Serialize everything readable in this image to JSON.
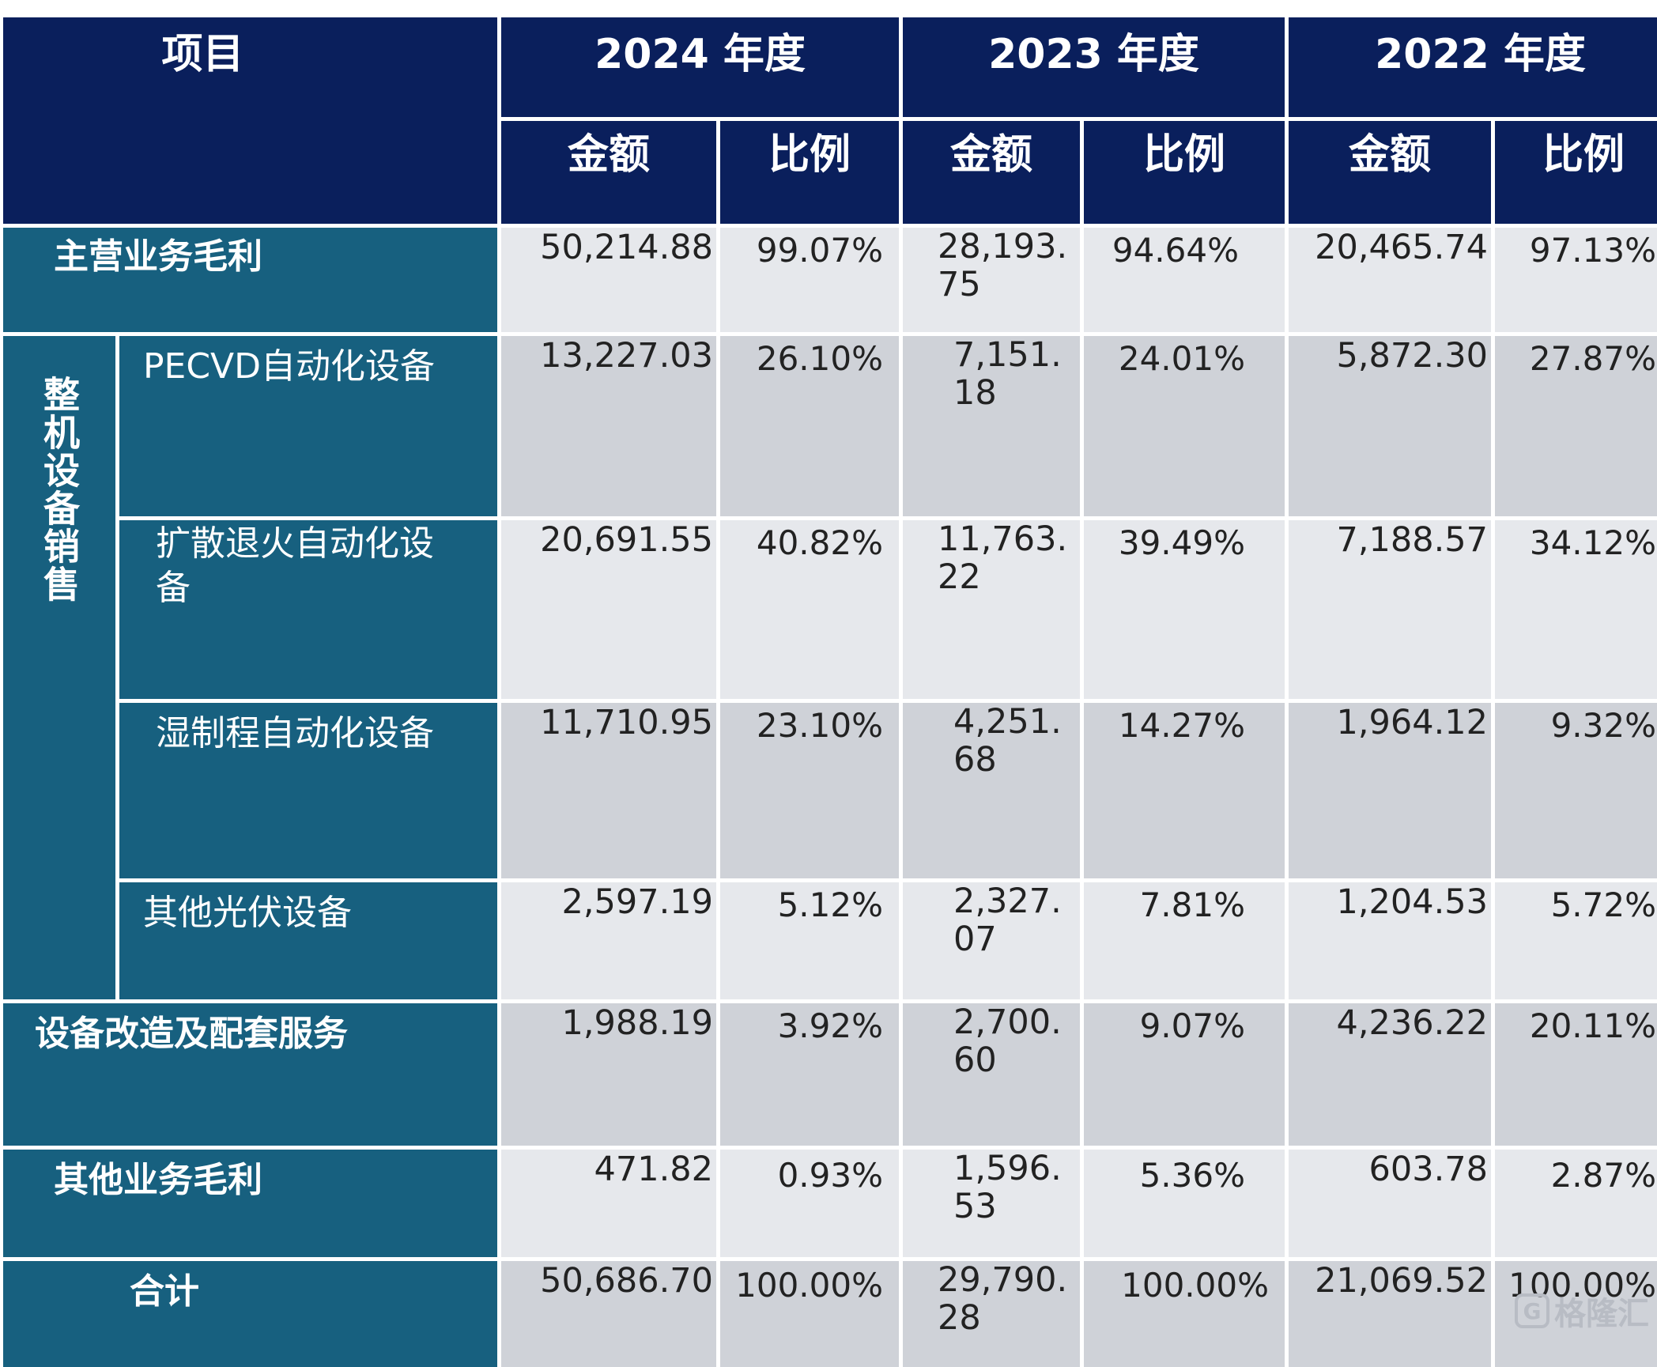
{
  "header": {
    "item": "项目",
    "years": [
      "2024 年度",
      "2023 年度",
      "2022 年度"
    ],
    "amount": "金额",
    "ratio": "比例"
  },
  "group_label": "整机设备销售",
  "rows": [
    {
      "label": "主营业务毛利",
      "v24": "50,214.88",
      "p24": "99.07%",
      "v23": "28,193.75",
      "p23": "94.64%",
      "v22": "20,465.74",
      "p22": "97.13%"
    },
    {
      "label": "PECVD自动化设备",
      "v24": "13,227.03",
      "p24": "26.10%",
      "v23": "7,151.18",
      "p23": "24.01%",
      "v22": "5,872.30",
      "p22": "27.87%"
    },
    {
      "label": "扩散退火自动化设备",
      "v24": "20,691.55",
      "p24": "40.82%",
      "v23": "11,763.22",
      "p23": "39.49%",
      "v22": "7,188.57",
      "p22": "34.12%"
    },
    {
      "label": "湿制程自动化设备",
      "v24": "11,710.95",
      "p24": "23.10%",
      "v23": "4,251.68",
      "p23": "14.27%",
      "v22": "1,964.12",
      "p22": "9.32%"
    },
    {
      "label": "其他光伏设备",
      "v24": "2,597.19",
      "p24": "5.12%",
      "v23": "2,327.07",
      "p23": "7.81%",
      "v22": "1,204.53",
      "p22": "5.72%"
    },
    {
      "label": "设备改造及配套服务",
      "v24": "1,988.19",
      "p24": "3.92%",
      "v23": "2,700.60",
      "p23": "9.07%",
      "v22": "4,236.22",
      "p22": "20.11%"
    },
    {
      "label": "其他业务毛利",
      "v24": "471.82",
      "p24": "0.93%",
      "v23": "1,596.53",
      "p23": "5.36%",
      "v22": "603.78",
      "p22": "2.87%"
    },
    {
      "label": "合计",
      "v24": "50,686.70",
      "p24": "100.00%",
      "v23": "29,790.28",
      "p23": "100.00%",
      "v22": "21,069.52",
      "p22": "100.00%"
    }
  ],
  "watermark": "格隆汇",
  "colors": {
    "header_bg": "#0a1f5c",
    "label_bg": "#17607f",
    "row_light": "#e6e8ec",
    "row_mid": "#cfd2d8"
  }
}
